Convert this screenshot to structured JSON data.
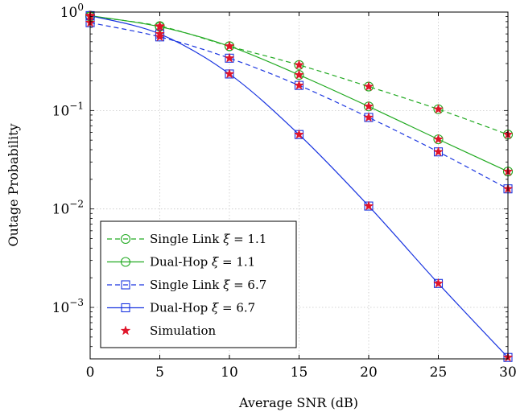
{
  "chart_data": {
    "type": "line",
    "xlabel": "Average SNR (dB)",
    "ylabel": "Outage Probability",
    "xlim": [
      0,
      30
    ],
    "ylim": [
      0.0003,
      1
    ],
    "yscale": "log",
    "grid": true,
    "x": [
      0,
      5,
      10,
      15,
      20,
      25,
      30
    ],
    "x_ticks": [
      "0",
      "5",
      "10",
      "15",
      "20",
      "25",
      "30"
    ],
    "y_ticks": [
      {
        "value": 1,
        "base": "10",
        "exp": "0"
      },
      {
        "value": 0.1,
        "base": "10",
        "exp": "−1"
      },
      {
        "value": 0.01,
        "base": "10",
        "exp": "−2"
      },
      {
        "value": 0.001,
        "base": "10",
        "exp": "−3"
      }
    ],
    "legend_position": "bottom-left",
    "series": [
      {
        "name": "Single Link ξ = 1.1",
        "label_main": "Single Link ",
        "label_sym": "ξ",
        "label_rest": " = 1.1",
        "color": "#22aa22",
        "dashed": true,
        "marker": "circle",
        "values": [
          0.9,
          0.72,
          0.45,
          0.29,
          0.175,
          0.103,
          0.057
        ]
      },
      {
        "name": "Dual-Hop ξ = 1.1",
        "label_main": "Dual-Hop ",
        "label_sym": "ξ",
        "label_rest": " = 1.1",
        "color": "#22aa22",
        "dashed": false,
        "marker": "circle",
        "values": [
          0.92,
          0.71,
          0.45,
          0.23,
          0.11,
          0.051,
          0.024
        ]
      },
      {
        "name": "Single Link ξ = 6.7",
        "label_main": "Single Link ",
        "label_sym": "ξ",
        "label_rest": " = 6.7",
        "color": "#1a35e0",
        "dashed": true,
        "marker": "square",
        "values": [
          0.78,
          0.56,
          0.34,
          0.18,
          0.085,
          0.038,
          0.016
        ]
      },
      {
        "name": "Dual-Hop ξ = 6.7",
        "label_main": "Dual-Hop ",
        "label_sym": "ξ",
        "label_rest": " = 6.7",
        "color": "#1a35e0",
        "dashed": false,
        "marker": "square",
        "values": [
          0.92,
          0.6,
          0.235,
          0.057,
          0.0107,
          0.00175,
          0.00031
        ]
      }
    ],
    "simulation": {
      "name": "Simulation",
      "color": "#e0152a",
      "marker": "star",
      "points": [
        {
          "series": 0,
          "x": [
            0,
            5,
            10,
            15,
            20,
            25,
            30
          ]
        },
        {
          "series": 1,
          "x": [
            0,
            5,
            10,
            15,
            20,
            25,
            30
          ]
        },
        {
          "series": 2,
          "x": [
            0,
            5,
            10,
            15,
            20,
            25,
            30
          ]
        },
        {
          "series": 3,
          "x": [
            0,
            5,
            10,
            15,
            20,
            25,
            30
          ]
        }
      ]
    }
  }
}
